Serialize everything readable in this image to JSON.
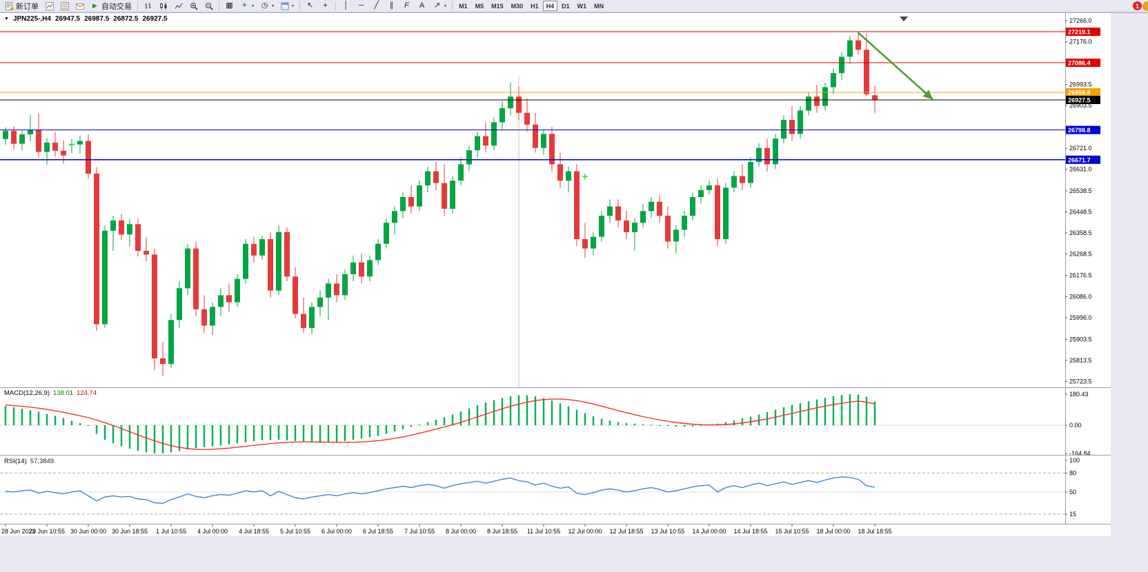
{
  "window": {
    "bg_color": "#e9e7f4"
  },
  "toolbar": {
    "new_order_label": "新订单",
    "auto_trading_label": "自动交易",
    "timeframes": [
      "M1",
      "M5",
      "M15",
      "M30",
      "H1",
      "H4",
      "D1",
      "W1",
      "MN"
    ],
    "active_timeframe": "H4",
    "notification_count": "1",
    "icons": {
      "caret": "▾",
      "play": "▶",
      "tile": "▦",
      "indicator_plus": "+",
      "clock": "◷",
      "cursor": "↖",
      "crosshair": "+",
      "vline": "│",
      "hline": "─",
      "trendline": "╱",
      "channel": "∥",
      "fibonacci": "F",
      "text": "A",
      "arrow_tool": "↗"
    }
  },
  "chart_title": {
    "collapse_arrow": "▼",
    "symbol_period": "JPN225-,H4",
    "open": "26947.5",
    "high": "26987.5",
    "low": "26872.5",
    "close": "26927.5"
  },
  "indicators": {
    "macd": {
      "name": "MACD(12,26,9)",
      "main_value": "138.01",
      "signal_value": "124.74"
    },
    "rsi": {
      "name": "RSI(14)",
      "value": "57.3849"
    }
  },
  "chart_data": {
    "type": "candlestick",
    "symbol": "JPN225-",
    "timeframe": "H4",
    "y_range": [
      25710,
      27290
    ],
    "up_color": "#00a642",
    "down_color": "#e43a3a",
    "price_ticks": [
      "27266.0",
      "27176.0",
      "26993.5",
      "26903.5",
      "26721.0",
      "26631.0",
      "26538.5",
      "26448.5",
      "26358.5",
      "26268.5",
      "26176.5",
      "26086.0",
      "25996.0",
      "25903.5",
      "25813.5",
      "25723.5"
    ],
    "levels": [
      {
        "price": 27219.1,
        "label": "27219.1",
        "color": "#e00000"
      },
      {
        "price": 27086.4,
        "label": "27086.4",
        "color": "#e00000"
      },
      {
        "price": 26959.8,
        "label": "26959.8",
        "color": "#f5a000"
      },
      {
        "price": 26927.5,
        "label": "26927.5",
        "color": "#000000"
      },
      {
        "price": 26798.8,
        "label": "26798.8",
        "color": "#0000d0"
      },
      {
        "price": 26671.7,
        "label": "26671.7",
        "color": "#0000d0"
      }
    ],
    "time_labels": [
      "28 Jun 2022",
      "29 Jun 10:55",
      "30 Jun 00:00",
      "30 Jun 18:55",
      "1 Jul 10:55",
      "4 Jul 00:00",
      "4 Jul 18:55",
      "5 Jul 10:55",
      "6 Jul 00:00",
      "6 Jul 18:55",
      "7 Jul 10:55",
      "8 Jul 00:00",
      "8 Jul 18:55",
      "11 Jul 10:55",
      "12 Jul 00:00",
      "12 Jul 18:55",
      "13 Jul 10:55",
      "14 Jul 00:00",
      "14 Jul 18:55",
      "15 Jul 10:55",
      "18 Jul 00:00",
      "18 Jul 18:55"
    ],
    "candles_per_label": 5,
    "candles": [
      [
        26760,
        26810,
        26735,
        26795
      ],
      [
        26795,
        26815,
        26715,
        26740
      ],
      [
        26740,
        26795,
        26710,
        26780
      ],
      [
        26780,
        26865,
        26750,
        26800
      ],
      [
        26800,
        26870,
        26680,
        26705
      ],
      [
        26705,
        26765,
        26650,
        26745
      ],
      [
        26745,
        26790,
        26685,
        26710
      ],
      [
        26710,
        26755,
        26655,
        26690
      ],
      [
        26735,
        26760,
        26700,
        26737
      ],
      [
        26737,
        26775,
        26698,
        26752
      ],
      [
        26752,
        26780,
        26590,
        26612
      ],
      [
        26612,
        26640,
        25940,
        25968
      ],
      [
        25968,
        26390,
        25952,
        26368
      ],
      [
        26368,
        26432,
        26282,
        26412
      ],
      [
        26412,
        26440,
        26328,
        26352
      ],
      [
        26352,
        26420,
        26302,
        26396
      ],
      [
        26396,
        26420,
        26258,
        26282
      ],
      [
        26282,
        26340,
        26238,
        26266
      ],
      [
        26266,
        26292,
        25772,
        25822
      ],
      [
        25822,
        25892,
        25745,
        25798
      ],
      [
        25798,
        26012,
        25780,
        25986
      ],
      [
        25986,
        26152,
        25952,
        26122
      ],
      [
        26122,
        26312,
        26092,
        26292
      ],
      [
        26292,
        26322,
        26002,
        26032
      ],
      [
        26032,
        26092,
        25932,
        25962
      ],
      [
        25962,
        26062,
        25922,
        26042
      ],
      [
        26042,
        26122,
        26002,
        26092
      ],
      [
        26092,
        26142,
        26022,
        26062
      ],
      [
        26062,
        26182,
        26042,
        26162
      ],
      [
        26162,
        26332,
        26142,
        26312
      ],
      [
        26312,
        26342,
        26232,
        26262
      ],
      [
        26262,
        26346,
        26242,
        26332
      ],
      [
        26332,
        26362,
        26082,
        26112
      ],
      [
        26112,
        26392,
        26092,
        26362
      ],
      [
        26362,
        26382,
        26152,
        26172
      ],
      [
        26172,
        26212,
        25992,
        26012
      ],
      [
        26012,
        26082,
        25932,
        25952
      ],
      [
        25952,
        26062,
        25926,
        26042
      ],
      [
        26042,
        26112,
        26002,
        26082
      ],
      [
        26082,
        26162,
        25986,
        26142
      ],
      [
        26142,
        26182,
        26062,
        26092
      ],
      [
        26092,
        26202,
        26072,
        26182
      ],
      [
        26182,
        26262,
        26152,
        26232
      ],
      [
        26232,
        26272,
        26142,
        26172
      ],
      [
        26172,
        26262,
        26152,
        26242
      ],
      [
        26242,
        26332,
        26222,
        26312
      ],
      [
        26312,
        26422,
        26292,
        26402
      ],
      [
        26402,
        26472,
        26352,
        26452
      ],
      [
        26452,
        26532,
        26422,
        26512
      ],
      [
        26512,
        26562,
        26442,
        26472
      ],
      [
        26472,
        26582,
        26452,
        26562
      ],
      [
        26562,
        26642,
        26532,
        26622
      ],
      [
        26622,
        26662,
        26542,
        26572
      ],
      [
        26572,
        26652,
        26432,
        26462
      ],
      [
        26462,
        26602,
        26442,
        26582
      ],
      [
        26582,
        26682,
        26562,
        26652
      ],
      [
        26652,
        26732,
        26622,
        26712
      ],
      [
        26712,
        26792,
        26682,
        26772
      ],
      [
        26772,
        26832,
        26702,
        26732
      ],
      [
        26732,
        26852,
        26712,
        26832
      ],
      [
        26832,
        26922,
        26802,
        26892
      ],
      [
        26892,
        27002,
        26862,
        26942
      ],
      [
        26942,
        26986,
        26842,
        26872
      ],
      [
        26872,
        26932,
        26792,
        26822
      ],
      [
        26822,
        26872,
        26702,
        26722
      ],
      [
        26722,
        26802,
        26692,
        26782
      ],
      [
        26782,
        26812,
        26622,
        26652
      ],
      [
        26652,
        26702,
        26552,
        26582
      ],
      [
        26582,
        26642,
        26532,
        26622
      ],
      [
        26622,
        26652,
        26302,
        26332
      ],
      [
        26332,
        26402,
        26252,
        26292
      ],
      [
        26292,
        26362,
        26262,
        26342
      ],
      [
        26342,
        26452,
        26322,
        26432
      ],
      [
        26432,
        26502,
        26402,
        26472
      ],
      [
        26472,
        26502,
        26382,
        26412
      ],
      [
        26412,
        26452,
        26332,
        26362
      ],
      [
        26362,
        26422,
        26282,
        26402
      ],
      [
        26402,
        26482,
        26382,
        26452
      ],
      [
        26452,
        26512,
        26422,
        26492
      ],
      [
        26492,
        26522,
        26402,
        26432
      ],
      [
        26432,
        26472,
        26292,
        26322
      ],
      [
        26322,
        26392,
        26272,
        26372
      ],
      [
        26372,
        26452,
        26342,
        26432
      ],
      [
        26432,
        26532,
        26412,
        26512
      ],
      [
        26512,
        26562,
        26482,
        26542
      ],
      [
        26542,
        26582,
        26522,
        26562
      ],
      [
        26562,
        26592,
        26302,
        26332
      ],
      [
        26332,
        26572,
        26312,
        26552
      ],
      [
        26552,
        26622,
        26532,
        26602
      ],
      [
        26602,
        26652,
        26542,
        26572
      ],
      [
        26572,
        26682,
        26552,
        26662
      ],
      [
        26662,
        26742,
        26642,
        26722
      ],
      [
        26722,
        26762,
        26622,
        26652
      ],
      [
        26652,
        26782,
        26632,
        26762
      ],
      [
        26762,
        26862,
        26742,
        26842
      ],
      [
        26842,
        26902,
        26752,
        26782
      ],
      [
        26782,
        26902,
        26762,
        26882
      ],
      [
        26882,
        26962,
        26862,
        26942
      ],
      [
        26942,
        26992,
        26872,
        26902
      ],
      [
        26902,
        27002,
        26882,
        26982
      ],
      [
        26982,
        27062,
        26952,
        27042
      ],
      [
        27042,
        27132,
        27012,
        27112
      ],
      [
        27112,
        27202,
        27082,
        27182
      ],
      [
        27182,
        27219.1,
        27122,
        27142
      ],
      [
        27142,
        27212,
        26942,
        26952
      ],
      [
        26947.5,
        26987.5,
        26872.5,
        26927.5
      ]
    ],
    "annotations": {
      "trend_arrow": {
        "from_candle": 103,
        "from_price": 27215,
        "to_candle": 112,
        "to_price": 26930,
        "color": "#4b9e2f"
      },
      "vline_candle": 62,
      "crosses": [
        {
          "candle": 8,
          "price": 26737
        },
        {
          "candle": 70,
          "price": 26600
        }
      ]
    },
    "macd": {
      "axis": [
        "180.43",
        "0.00",
        "-164.84"
      ],
      "max": 180.43,
      "min": -164.84,
      "histogram": [
        112,
        104,
        96,
        88,
        78,
        66,
        54,
        40,
        26,
        12,
        -2,
        -50,
        -85,
        -105,
        -122,
        -136,
        -149,
        -158,
        -165,
        -164,
        -158,
        -150,
        -141,
        -133,
        -127,
        -122,
        -117,
        -112,
        -106,
        -99,
        -93,
        -88,
        -86,
        -85,
        -88,
        -92,
        -97,
        -102,
        -104,
        -102,
        -98,
        -92,
        -85,
        -78,
        -71,
        -62,
        -50,
        -37,
        -23,
        -10,
        4,
        18,
        32,
        46,
        62,
        80,
        98,
        116,
        132,
        146,
        158,
        168,
        175,
        174,
        168,
        158,
        144,
        128,
        110,
        90,
        70,
        52,
        38,
        27,
        19,
        13,
        9,
        6,
        3,
        0,
        -4,
        -8,
        -9,
        -7,
        -3,
        2,
        9,
        18,
        28,
        40,
        50,
        62,
        76,
        90,
        104,
        117,
        128,
        139,
        150,
        160,
        169,
        176,
        180.43,
        178,
        166,
        138.01
      ],
      "signal": [
        118,
        114,
        110,
        105,
        99,
        92,
        84,
        75,
        65,
        55,
        44,
        30,
        15,
        -2,
        -20,
        -38,
        -56,
        -74,
        -91,
        -106,
        -119,
        -129,
        -136,
        -140,
        -141,
        -140,
        -137,
        -133,
        -128,
        -123,
        -117,
        -112,
        -107,
        -103,
        -100,
        -98,
        -97,
        -97,
        -98,
        -99,
        -100,
        -100,
        -99,
        -97,
        -94,
        -90,
        -84,
        -77,
        -68,
        -58,
        -47,
        -35,
        -23,
        -10,
        3,
        17,
        32,
        48,
        64,
        80,
        96,
        110,
        123,
        134,
        143,
        149,
        152,
        152,
        149,
        143,
        134,
        123,
        111,
        98,
        85,
        73,
        61,
        50,
        40,
        31,
        23,
        16,
        10,
        6,
        3,
        2,
        2,
        4,
        8,
        13,
        20,
        28,
        37,
        47,
        58,
        69,
        80,
        91,
        101,
        111,
        120,
        128,
        135,
        140,
        134,
        124.74
      ]
    },
    "rsi": {
      "axis": [
        "100",
        "80",
        "50",
        "15"
      ],
      "levels": [
        80,
        50,
        15
      ],
      "values": [
        51,
        50,
        52,
        53,
        48,
        51,
        49,
        47,
        50,
        52,
        44,
        36,
        42,
        44,
        42,
        43,
        39,
        38,
        33,
        32,
        38,
        42,
        47,
        43,
        41,
        44,
        46,
        45,
        48,
        52,
        50,
        52,
        44,
        51,
        46,
        41,
        39,
        42,
        44,
        46,
        44,
        47,
        49,
        47,
        49,
        52,
        55,
        57,
        59,
        57,
        60,
        62,
        60,
        56,
        60,
        63,
        65,
        67,
        64,
        67,
        70,
        72,
        68,
        66,
        61,
        64,
        59,
        56,
        58,
        48,
        46,
        49,
        53,
        55,
        53,
        50,
        52,
        55,
        57,
        54,
        50,
        52,
        55,
        58,
        60,
        61,
        50,
        57,
        60,
        57,
        61,
        64,
        60,
        63,
        66,
        62,
        65,
        68,
        65,
        69,
        72,
        74,
        73,
        70,
        60,
        57.38
      ]
    }
  }
}
